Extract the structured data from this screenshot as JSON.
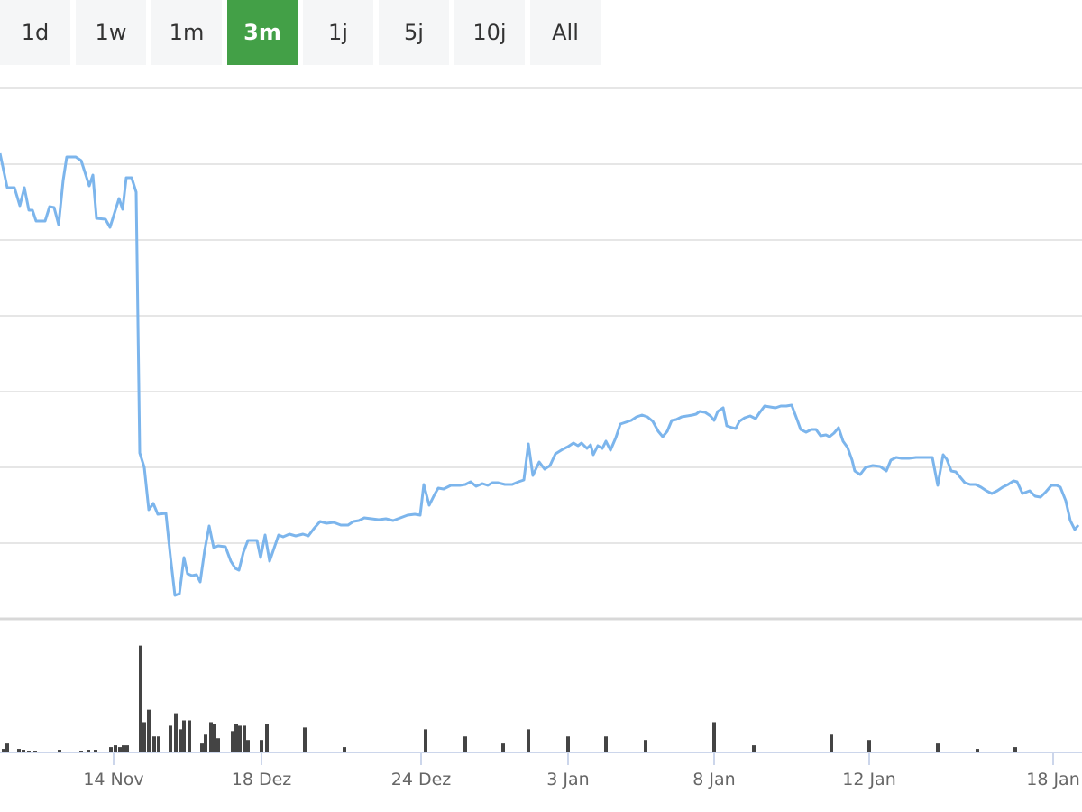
{
  "tabs": {
    "items": [
      "1d",
      "1w",
      "1m",
      "3m",
      "1j",
      "5j",
      "10j",
      "All"
    ],
    "active": 3
  },
  "chart_data": [
    {
      "type": "line",
      "color": "#7cb5ec",
      "xlim": [
        0,
        120
      ],
      "ylim": [
        0,
        588
      ],
      "ygrid": [
        84,
        168,
        252,
        336,
        420,
        504,
        588
      ],
      "x": [
        0,
        0.8,
        1.6,
        2.2,
        2.7,
        3.2,
        3.6,
        4.0,
        5.0,
        5.5,
        6.0,
        6.5,
        7.0,
        7.4,
        8.4,
        9.0,
        9.9,
        10.3,
        10.7,
        11.7,
        12.2,
        13.2,
        13.6,
        14.0,
        14.6,
        15.1,
        15.5,
        16.0,
        16.5,
        17.0,
        17.5,
        18.4,
        18.9,
        19.4,
        19.9,
        20.4,
        20.8,
        21.3,
        21.8,
        22.2,
        22.7,
        23.2,
        23.7,
        24.2,
        25.0,
        25.6,
        26.1,
        26.5,
        27.0,
        27.5,
        28.5,
        28.9,
        29.4,
        29.9,
        30.9,
        31.4,
        32.1,
        32.8,
        33.6,
        34.2,
        34.8,
        35.5,
        36.2,
        37.0,
        37.8,
        38.6,
        39.2,
        39.8,
        40.4,
        41.2,
        42.0,
        42.8,
        43.6,
        44.4,
        45.2,
        46.0,
        46.6,
        47.0,
        47.6,
        48.2,
        48.6,
        49.2,
        50.0,
        51.0,
        51.6,
        52.2,
        52.8,
        53.5,
        54.1,
        54.6,
        55.2,
        56.0,
        56.8,
        57.5,
        58.1,
        58.6,
        59.1,
        59.8,
        60.4,
        61.0,
        61.6,
        62.4,
        63.0,
        63.6,
        64.1,
        64.5,
        65.1,
        65.5,
        65.8,
        66.3,
        66.8,
        67.2,
        67.7,
        68.3,
        68.8,
        69.4,
        70.0,
        70.6,
        71.2,
        71.8,
        72.4,
        73.0,
        73.5,
        74.0,
        74.5,
        75.0,
        75.6,
        76.2,
        76.8,
        77.2,
        77.6,
        78.2,
        78.8,
        79.2,
        79.6,
        80.2,
        80.6,
        81.2,
        81.6,
        82.0,
        82.6,
        83.2,
        83.8,
        84.2,
        84.8,
        85.4,
        86.0,
        86.6,
        87.2,
        87.8,
        88.4,
        88.8,
        89.4,
        90.0,
        90.5,
        91.0,
        91.6,
        92.0,
        92.5,
        93.0,
        93.5,
        94.0,
        94.5,
        94.8,
        95.4,
        96.0,
        96.8,
        97.6,
        98.3,
        98.8,
        99.4,
        100.0,
        100.8,
        101.6,
        102.4,
        103.4,
        104.0,
        104.6,
        105.0,
        105.5,
        106.0,
        106.5,
        107.0,
        107.6,
        108.2,
        108.8,
        109.4,
        110.0,
        110.6,
        111.2,
        111.8,
        112.4,
        112.8,
        113.4,
        114.2,
        114.8,
        115.4,
        116.0,
        116.6,
        117.2,
        117.6,
        118.2,
        118.7,
        119.2,
        119.6
      ],
      "values": [
        516,
        478,
        478,
        458,
        478,
        453,
        453,
        441,
        441,
        457,
        456,
        437,
        486,
        512,
        512,
        508,
        480,
        492,
        444,
        443,
        434,
        466,
        454,
        489,
        489,
        473,
        184,
        168,
        121,
        128,
        116,
        117,
        69,
        26,
        28,
        68,
        50,
        48,
        49,
        41,
        76,
        103,
        79,
        81,
        80,
        64,
        56,
        54,
        74,
        87,
        87,
        68,
        93,
        64,
        93,
        91,
        94,
        92,
        94,
        92,
        100,
        108,
        106,
        107,
        104,
        104,
        108,
        109,
        112,
        111,
        110,
        111,
        109,
        112,
        115,
        116,
        115,
        149,
        126,
        138,
        145,
        144,
        148,
        148,
        149,
        152,
        147,
        150,
        148,
        151,
        151,
        149,
        149,
        152,
        154,
        194,
        159,
        174,
        166,
        170,
        183,
        188,
        191,
        195,
        192,
        195,
        189,
        193,
        182,
        192,
        189,
        197,
        187,
        201,
        216,
        218,
        220,
        224,
        226,
        224,
        219,
        208,
        202,
        208,
        220,
        221,
        224,
        225,
        226,
        227,
        230,
        229,
        225,
        220,
        230,
        234,
        214,
        212,
        211,
        219,
        223,
        225,
        222,
        228,
        236,
        235,
        234,
        236,
        236,
        237,
        221,
        210,
        207,
        210,
        210,
        203,
        204,
        202,
        206,
        212,
        197,
        190,
        176,
        164,
        160,
        168,
        170,
        169,
        164,
        176,
        179,
        178,
        178,
        179,
        179,
        179,
        148,
        182,
        177,
        164,
        163,
        157,
        151,
        149,
        149,
        146,
        142,
        139,
        142,
        146,
        149,
        153,
        152,
        139,
        142,
        136,
        135,
        141,
        148,
        148,
        146,
        131,
        109,
        99,
        104
      ]
    },
    {
      "type": "bar",
      "color": "#444444",
      "xlim": [
        0,
        120
      ],
      "ylim": [
        0,
        148
      ],
      "x": [
        0.4,
        0.8,
        2.1,
        2.6,
        3.2,
        3.9,
        6.6,
        9.0,
        9.8,
        10.6,
        12.3,
        12.8,
        13.3,
        13.7,
        14.1,
        15.6,
        16.0,
        16.5,
        17.1,
        17.6,
        18.9,
        19.5,
        20.0,
        20.4,
        21.0,
        22.4,
        22.8,
        23.4,
        23.8,
        24.2,
        25.8,
        26.2,
        26.6,
        27.1,
        27.5,
        29.0,
        29.6,
        33.8,
        38.2,
        47.2,
        51.6,
        55.8,
        58.6,
        63.0,
        67.2,
        71.6,
        79.2,
        83.6,
        92.2,
        96.4,
        104.0,
        108.4,
        112.6
      ],
      "values": [
        4,
        10,
        4,
        3,
        2,
        2,
        3,
        2,
        3,
        3,
        6,
        8,
        6,
        8,
        8,
        120,
        34,
        48,
        18,
        18,
        30,
        44,
        26,
        36,
        36,
        10,
        20,
        34,
        32,
        16,
        24,
        32,
        30,
        30,
        14,
        14,
        32,
        28,
        6,
        26,
        18,
        10,
        26,
        18,
        18,
        14,
        34,
        8,
        20,
        14,
        10,
        4,
        6
      ],
      "xticks": [
        {
          "value": 12.6,
          "label": "14 Nov"
        },
        {
          "value": 29.0,
          "label": "18 Dez"
        },
        {
          "value": 46.7,
          "label": "24 Dez"
        },
        {
          "value": 63.0,
          "label": "3 Jan"
        },
        {
          "value": 79.2,
          "label": "8 Jan"
        },
        {
          "value": 96.4,
          "label": "12 Jan"
        },
        {
          "value": 116.8,
          "label": "18 Jan"
        }
      ]
    }
  ]
}
